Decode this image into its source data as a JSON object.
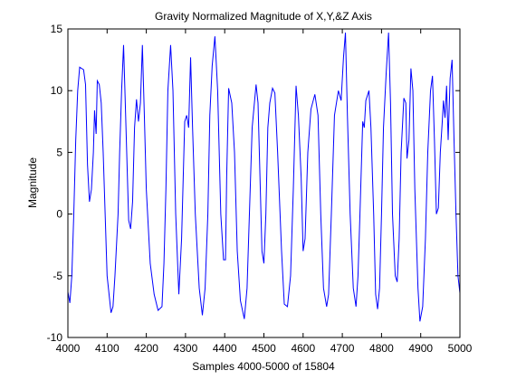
{
  "chart_data": {
    "type": "line",
    "title": "Gravity Normalized Magnitude of X,Y,&Z Axis",
    "xlabel": "Samples 4000-5000 of 15804",
    "ylabel": "Magnitude",
    "color": "#0000ff",
    "xlim": [
      4000,
      5000
    ],
    "ylim": [
      -10,
      15
    ],
    "xticks": [
      4000,
      4100,
      4200,
      4300,
      4400,
      4500,
      4600,
      4700,
      4800,
      4900,
      5000
    ],
    "yticks": [
      -10,
      -5,
      0,
      5,
      10,
      15
    ],
    "x": [
      4000,
      4005,
      4010,
      4015,
      4020,
      4025,
      4030,
      4040,
      4045,
      4050,
      4055,
      4060,
      4065,
      4068,
      4072,
      4075,
      4080,
      4085,
      4090,
      4100,
      4110,
      4115,
      4120,
      4128,
      4132,
      4137,
      4142,
      4145,
      4150,
      4155,
      4160,
      4165,
      4170,
      4175,
      4180,
      4185,
      4190,
      4195,
      4200,
      4210,
      4220,
      4230,
      4240,
      4245,
      4250,
      4255,
      4262,
      4268,
      4275,
      4283,
      4290,
      4298,
      4303,
      4308,
      4313,
      4318,
      4325,
      4335,
      4343,
      4350,
      4357,
      4362,
      4368,
      4375,
      4382,
      4390,
      4397,
      4402,
      4405,
      4410,
      4418,
      4425,
      4432,
      4440,
      4450,
      4457,
      4463,
      4470,
      4480,
      4485,
      4490,
      4495,
      4500,
      4505,
      4510,
      4515,
      4522,
      4528,
      4535,
      4545,
      4552,
      4560,
      4568,
      4575,
      4582,
      4588,
      4595,
      4600,
      4605,
      4612,
      4620,
      4630,
      4638,
      4645,
      4652,
      4660,
      4665,
      4672,
      4680,
      4690,
      4697,
      4703,
      4708,
      4713,
      4720,
      4728,
      4735,
      4740,
      4745,
      4752,
      4756,
      4760,
      4768,
      4773,
      4780,
      4785,
      4790,
      4795,
      4800,
      4805,
      4812,
      4818,
      4823,
      4828,
      4835,
      4840,
      4845,
      4850,
      4857,
      4862,
      4865,
      4870,
      4875,
      4880,
      4885,
      4893,
      4898,
      4905,
      4912,
      4918,
      4925,
      4930,
      4935,
      4940,
      4945,
      4950,
      4955,
      4958,
      4962,
      4966,
      4970,
      4975,
      4980,
      4985,
      4990,
      4995,
      5000
    ],
    "values": [
      -6.3,
      -7.2,
      -5,
      0,
      6,
      10,
      11.9,
      11.7,
      10.5,
      4,
      1,
      2,
      5,
      8.4,
      6.5,
      10.8,
      10.5,
      9,
      5,
      -5,
      -8,
      -7.5,
      -5,
      0,
      5,
      10,
      13.7,
      10.5,
      5,
      -0.5,
      -1.2,
      1,
      7,
      9.3,
      7.5,
      9,
      13.7,
      8,
      2,
      -4,
      -6.5,
      -7.8,
      -7.5,
      -4,
      2,
      10,
      13.7,
      10,
      0,
      -6.5,
      -2,
      7.5,
      8,
      7,
      12.7,
      7,
      0,
      -6,
      -8.2,
      -6,
      0,
      8,
      12,
      14.4,
      10,
      0,
      -3.7,
      -3.7,
      3,
      10.2,
      9,
      5,
      -3,
      -7,
      -8.5,
      -6,
      0,
      7,
      10.5,
      9,
      3,
      -3,
      -4,
      0,
      7,
      9,
      10.2,
      9.8,
      5,
      -3,
      -7.3,
      -7.5,
      -5,
      2,
      10.4,
      8,
      3,
      -3,
      -2,
      5,
      8.5,
      9.7,
      8,
      0,
      -6,
      -7.5,
      -6.5,
      0,
      8,
      10,
      9.2,
      12.7,
      14.7,
      8,
      0,
      -6,
      -7.5,
      -5,
      0,
      7.5,
      7,
      9.2,
      10,
      7,
      0,
      -6.5,
      -7.7,
      -6,
      0,
      7,
      11.5,
      14.7,
      9,
      0,
      -5,
      -5.5,
      -2,
      5,
      9.4,
      9,
      4.5,
      6,
      11.8,
      10,
      2,
      -6,
      -8.7,
      -7.5,
      -2,
      5,
      10,
      11.2,
      6,
      0,
      0.5,
      5,
      7.5,
      9.2,
      7.8,
      10.4,
      6,
      11,
      12.5,
      6,
      0,
      -5,
      -6.4
    ]
  }
}
